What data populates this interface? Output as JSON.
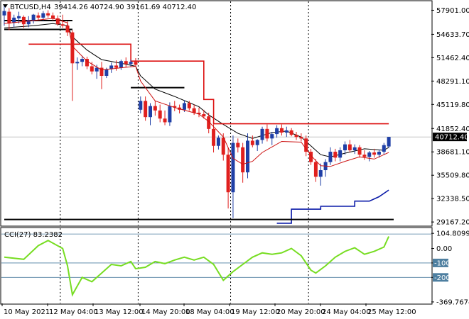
{
  "header": {
    "symbol": "BTCUSD,H4",
    "ohlc": "39414.26 40724.90 39161.69 40712.40"
  },
  "colors": {
    "bull": "#1f3fa6",
    "bear": "#e0201e",
    "ma_fast": "#cc1111",
    "ma_slow": "#000000",
    "step_red": "#dd1111",
    "step_blue": "#0a1aa8",
    "cci_line": "#77dd22",
    "cci_level": "#4e7fa0",
    "price_box": "#000000"
  },
  "chart_data": [
    {
      "type": "candlestick",
      "title": "",
      "y_ticks": [
        "57901.00",
        "54633.70",
        "51462.40",
        "48291.10",
        "45119.80",
        "41852.40",
        "38681.10",
        "35509.80",
        "32338.50",
        "29167.20"
      ],
      "y_tick_values": [
        57901.0,
        54633.7,
        51462.4,
        48291.1,
        45119.8,
        41852.4,
        38681.1,
        35509.8,
        32338.5,
        29167.2
      ],
      "ylim": [
        28700,
        59100
      ],
      "current_price_label": "40712.40",
      "current_price": 40712.4,
      "x_ticks": [
        "10 May 2021",
        "12 May 04:00",
        "13 May 12:00",
        "14 May 20:00",
        "18 May 04:00",
        "19 May 12:00",
        "20 May 20:00",
        "24 May 04:00",
        "25 May 12:00"
      ],
      "candles": [
        {
          "o": 57200,
          "h": 58700,
          "l": 55800,
          "c": 57800
        },
        {
          "o": 57700,
          "h": 58200,
          "l": 55200,
          "c": 56100
        },
        {
          "o": 56200,
          "h": 57300,
          "l": 55600,
          "c": 56900
        },
        {
          "o": 56800,
          "h": 57700,
          "l": 56100,
          "c": 57100
        },
        {
          "o": 57000,
          "h": 57200,
          "l": 55500,
          "c": 56000
        },
        {
          "o": 56000,
          "h": 57100,
          "l": 55600,
          "c": 56600
        },
        {
          "o": 56500,
          "h": 57400,
          "l": 56100,
          "c": 57300
        },
        {
          "o": 57200,
          "h": 57600,
          "l": 56600,
          "c": 56900
        },
        {
          "o": 56900,
          "h": 57800,
          "l": 56500,
          "c": 57500
        },
        {
          "o": 57500,
          "h": 57900,
          "l": 56900,
          "c": 57200
        },
        {
          "o": 57200,
          "h": 57600,
          "l": 56500,
          "c": 56800
        },
        {
          "o": 56800,
          "h": 57200,
          "l": 55800,
          "c": 56000
        },
        {
          "o": 56000,
          "h": 57300,
          "l": 55500,
          "c": 55800
        },
        {
          "o": 55800,
          "h": 56400,
          "l": 54400,
          "c": 54900
        },
        {
          "o": 54900,
          "h": 55200,
          "l": 45600,
          "c": 50700
        },
        {
          "o": 50700,
          "h": 51500,
          "l": 49800,
          "c": 50900
        },
        {
          "o": 50900,
          "h": 51700,
          "l": 50300,
          "c": 51300
        },
        {
          "o": 51300,
          "h": 51600,
          "l": 49900,
          "c": 50300
        },
        {
          "o": 50300,
          "h": 50900,
          "l": 49200,
          "c": 49600
        },
        {
          "o": 49600,
          "h": 50500,
          "l": 48600,
          "c": 50100
        },
        {
          "o": 50100,
          "h": 50900,
          "l": 47200,
          "c": 49000
        },
        {
          "o": 49000,
          "h": 50100,
          "l": 48700,
          "c": 49900
        },
        {
          "o": 49900,
          "h": 50800,
          "l": 49400,
          "c": 50400
        },
        {
          "o": 50400,
          "h": 51100,
          "l": 49700,
          "c": 50100
        },
        {
          "o": 50100,
          "h": 51200,
          "l": 49800,
          "c": 51000
        },
        {
          "o": 51000,
          "h": 51500,
          "l": 50200,
          "c": 50600
        },
        {
          "o": 50600,
          "h": 51200,
          "l": 50200,
          "c": 50900
        },
        {
          "o": 50900,
          "h": 51400,
          "l": 50300,
          "c": 50500
        },
        {
          "o": 44400,
          "h": 46200,
          "l": 43900,
          "c": 45600
        },
        {
          "o": 45600,
          "h": 46200,
          "l": 42900,
          "c": 43400
        },
        {
          "o": 43400,
          "h": 45300,
          "l": 42300,
          "c": 44900
        },
        {
          "o": 44900,
          "h": 45600,
          "l": 43600,
          "c": 44300
        },
        {
          "o": 44300,
          "h": 45100,
          "l": 42700,
          "c": 43200
        },
        {
          "o": 43200,
          "h": 44300,
          "l": 42300,
          "c": 42700
        },
        {
          "o": 42700,
          "h": 45400,
          "l": 42200,
          "c": 44900
        },
        {
          "o": 44900,
          "h": 45600,
          "l": 44200,
          "c": 44700
        },
        {
          "o": 44700,
          "h": 45100,
          "l": 43900,
          "c": 44400
        },
        {
          "o": 44400,
          "h": 45700,
          "l": 44100,
          "c": 45300
        },
        {
          "o": 45300,
          "h": 45600,
          "l": 44300,
          "c": 44600
        },
        {
          "o": 44600,
          "h": 45100,
          "l": 43700,
          "c": 44000
        },
        {
          "o": 44000,
          "h": 44700,
          "l": 43400,
          "c": 43800
        },
        {
          "o": 43800,
          "h": 44400,
          "l": 43200,
          "c": 43500
        },
        {
          "o": 43500,
          "h": 44000,
          "l": 41200,
          "c": 41800
        },
        {
          "o": 41800,
          "h": 42400,
          "l": 38600,
          "c": 39500
        },
        {
          "o": 39500,
          "h": 40900,
          "l": 39000,
          "c": 40600
        },
        {
          "o": 40600,
          "h": 41200,
          "l": 37500,
          "c": 38300
        },
        {
          "o": 38300,
          "h": 39300,
          "l": 31000,
          "c": 33200
        },
        {
          "o": 33200,
          "h": 40900,
          "l": 29700,
          "c": 39900
        },
        {
          "o": 39900,
          "h": 40500,
          "l": 38600,
          "c": 39300
        },
        {
          "o": 39300,
          "h": 39900,
          "l": 34500,
          "c": 35900
        },
        {
          "o": 35900,
          "h": 41200,
          "l": 35100,
          "c": 40200
        },
        {
          "o": 40200,
          "h": 40900,
          "l": 39300,
          "c": 39600
        },
        {
          "o": 39600,
          "h": 40400,
          "l": 38800,
          "c": 40300
        },
        {
          "o": 40300,
          "h": 42100,
          "l": 39800,
          "c": 41800
        },
        {
          "o": 41800,
          "h": 42400,
          "l": 40100,
          "c": 40500
        },
        {
          "o": 40500,
          "h": 41400,
          "l": 39600,
          "c": 41100
        },
        {
          "o": 41100,
          "h": 42300,
          "l": 40600,
          "c": 41900
        },
        {
          "o": 41900,
          "h": 42400,
          "l": 40900,
          "c": 41300
        },
        {
          "o": 41300,
          "h": 42100,
          "l": 40700,
          "c": 41600
        },
        {
          "o": 41600,
          "h": 41900,
          "l": 40800,
          "c": 41000
        },
        {
          "o": 41000,
          "h": 41400,
          "l": 40300,
          "c": 40700
        },
        {
          "o": 40700,
          "h": 41200,
          "l": 40100,
          "c": 40500
        },
        {
          "o": 40500,
          "h": 40900,
          "l": 38100,
          "c": 38700
        },
        {
          "o": 38700,
          "h": 39100,
          "l": 36900,
          "c": 37300
        },
        {
          "o": 37300,
          "h": 37700,
          "l": 34600,
          "c": 35300
        },
        {
          "o": 35300,
          "h": 37100,
          "l": 34100,
          "c": 36200
        },
        {
          "o": 36200,
          "h": 37700,
          "l": 35300,
          "c": 37300
        },
        {
          "o": 37300,
          "h": 39300,
          "l": 36900,
          "c": 38700
        },
        {
          "o": 38700,
          "h": 39100,
          "l": 37400,
          "c": 37900
        },
        {
          "o": 37900,
          "h": 39300,
          "l": 37400,
          "c": 38900
        },
        {
          "o": 38900,
          "h": 40100,
          "l": 38300,
          "c": 39700
        },
        {
          "o": 39700,
          "h": 40300,
          "l": 38600,
          "c": 38900
        },
        {
          "o": 38900,
          "h": 39700,
          "l": 38400,
          "c": 39300
        },
        {
          "o": 39300,
          "h": 39600,
          "l": 37900,
          "c": 38300
        },
        {
          "o": 38300,
          "h": 38900,
          "l": 37600,
          "c": 38000
        },
        {
          "o": 38000,
          "h": 38800,
          "l": 37400,
          "c": 38600
        },
        {
          "o": 38600,
          "h": 39100,
          "l": 37900,
          "c": 38300
        },
        {
          "o": 38300,
          "h": 39000,
          "l": 37900,
          "c": 38700
        },
        {
          "o": 38700,
          "h": 39900,
          "l": 38300,
          "c": 39600
        },
        {
          "o": 39414.26,
          "h": 40724.9,
          "l": 39161.69,
          "c": 40712.4
        }
      ],
      "ma_fast": [
        [
          0,
          56100
        ],
        [
          6,
          56500
        ],
        [
          10,
          56800
        ],
        [
          13,
          56200
        ],
        [
          14,
          53000
        ],
        [
          17,
          51000
        ],
        [
          20,
          49800
        ],
        [
          24,
          50100
        ],
        [
          27,
          50300
        ],
        [
          28,
          48300
        ],
        [
          31,
          45600
        ],
        [
          35,
          44700
        ],
        [
          40,
          43800
        ],
        [
          42,
          42800
        ],
        [
          45,
          40700
        ],
        [
          47,
          37800
        ],
        [
          49,
          37000
        ],
        [
          51,
          37400
        ],
        [
          53,
          38600
        ],
        [
          57,
          40100
        ],
        [
          61,
          40000
        ],
        [
          63,
          38200
        ],
        [
          65,
          36800
        ],
        [
          67,
          36700
        ],
        [
          70,
          37400
        ],
        [
          73,
          38000
        ],
        [
          76,
          37700
        ],
        [
          79,
          38600
        ]
      ],
      "ma_slow": [
        [
          0,
          55500
        ],
        [
          6,
          55800
        ],
        [
          10,
          56100
        ],
        [
          13,
          55800
        ],
        [
          14,
          54300
        ],
        [
          17,
          52500
        ],
        [
          20,
          51200
        ],
        [
          24,
          50700
        ],
        [
          27,
          50300
        ],
        [
          28,
          49000
        ],
        [
          31,
          47200
        ],
        [
          35,
          46200
        ],
        [
          40,
          44800
        ],
        [
          42,
          43700
        ],
        [
          45,
          42400
        ],
        [
          48,
          41200
        ],
        [
          51,
          40500
        ],
        [
          55,
          41300
        ],
        [
          58,
          41500
        ],
        [
          61,
          40700
        ],
        [
          63,
          39500
        ],
        [
          65,
          38300
        ],
        [
          67,
          38000
        ],
        [
          70,
          38500
        ],
        [
          74,
          39100
        ],
        [
          78,
          38900
        ],
        [
          79,
          39300
        ]
      ],
      "step_red": [
        [
          5,
          53300
        ],
        [
          26,
          53300
        ],
        [
          26,
          51000
        ],
        [
          41,
          51000
        ],
        [
          41,
          45800
        ],
        [
          43,
          45800
        ],
        [
          43,
          42500
        ],
        [
          79,
          42500
        ]
      ],
      "step_blue": [
        [
          56,
          29000
        ],
        [
          59,
          29000
        ],
        [
          59,
          30900
        ],
        [
          65,
          30900
        ],
        [
          65,
          31300
        ],
        [
          72,
          31300
        ],
        [
          72,
          32000
        ],
        [
          75,
          32000
        ],
        [
          77,
          32600
        ],
        [
          79,
          33500
        ]
      ],
      "support_lines": [
        {
          "x0": 0,
          "x1": 14,
          "y": 55300
        },
        {
          "x0": 0,
          "x1": 14,
          "y": 56500
        },
        {
          "x0": 26,
          "x1": 37,
          "y": 47400
        },
        {
          "x0": 0,
          "x1": 80,
          "y": 29500
        }
      ]
    },
    {
      "type": "line",
      "title": "CCI(27) 83.2382",
      "name": "CCI(27)",
      "value_label": "83.2382",
      "y_ticks": [
        "104.8099",
        "0.00",
        "-100",
        "-200",
        "-369.7674"
      ],
      "y_tick_values": [
        104.8099,
        0,
        -100,
        -200,
        -369.7674
      ],
      "ylim": [
        -380,
        140
      ],
      "levels": [
        100,
        -100,
        -200
      ],
      "values": [
        [
          0,
          -60
        ],
        [
          4,
          -75
        ],
        [
          7,
          20
        ],
        [
          9,
          55
        ],
        [
          12,
          0
        ],
        [
          13,
          -120
        ],
        [
          14,
          -320
        ],
        [
          16,
          -200
        ],
        [
          18,
          -230
        ],
        [
          20,
          -170
        ],
        [
          22,
          -110
        ],
        [
          24,
          -120
        ],
        [
          26,
          -90
        ],
        [
          27,
          -140
        ],
        [
          29,
          -130
        ],
        [
          31,
          -90
        ],
        [
          33,
          -105
        ],
        [
          35,
          -80
        ],
        [
          37,
          -60
        ],
        [
          39,
          -80
        ],
        [
          41,
          -60
        ],
        [
          43,
          -110
        ],
        [
          45,
          -220
        ],
        [
          47,
          -160
        ],
        [
          49,
          -110
        ],
        [
          51,
          -60
        ],
        [
          53,
          -30
        ],
        [
          55,
          -40
        ],
        [
          57,
          -30
        ],
        [
          59,
          0
        ],
        [
          61,
          -50
        ],
        [
          63,
          -150
        ],
        [
          64,
          -170
        ],
        [
          66,
          -120
        ],
        [
          68,
          -60
        ],
        [
          70,
          -20
        ],
        [
          72,
          5
        ],
        [
          74,
          -40
        ],
        [
          76,
          -20
        ],
        [
          78,
          10
        ],
        [
          79,
          83
        ]
      ]
    }
  ]
}
